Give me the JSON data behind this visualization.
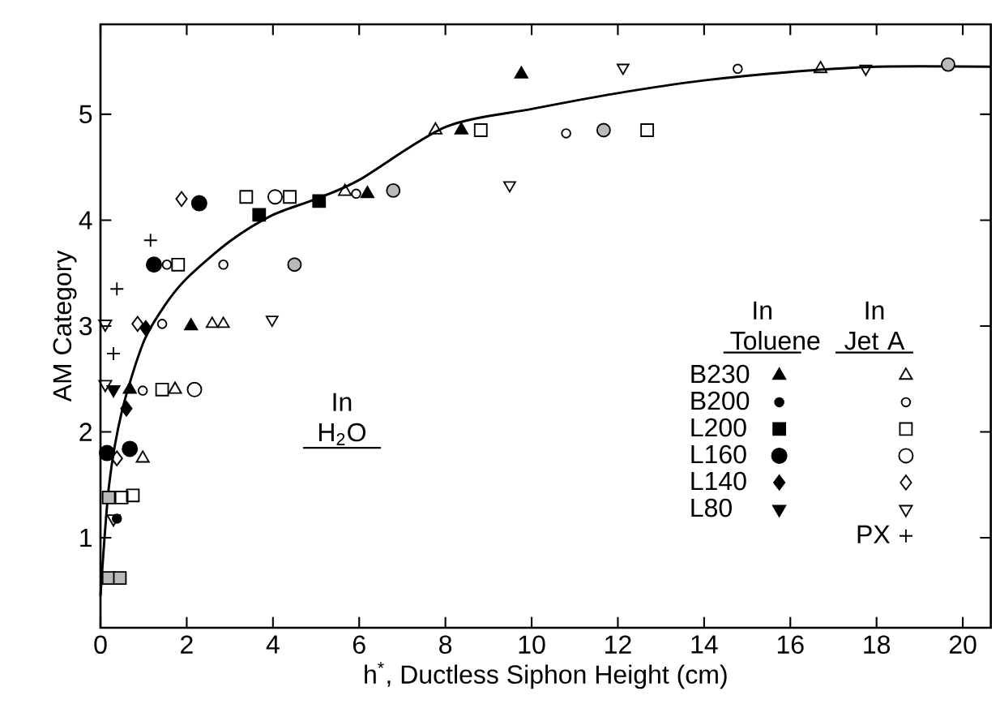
{
  "chart_data": {
    "type": "scatter",
    "xlabel": "h$^{*}$, Ductless Siphon Height (cm)",
    "ylabel": "AM Category",
    "xlim": [
      0,
      20.65
    ],
    "ylim": [
      0.15,
      5.85
    ],
    "xticks": [
      0,
      2,
      4,
      6,
      8,
      10,
      12,
      14,
      16,
      18,
      20
    ],
    "yticks": [
      1,
      2,
      3,
      4,
      5
    ],
    "grid": false,
    "legend": "bottom right",
    "annotations": [
      "In H$_{2}$O",
      "In Toluene",
      "In Jet A"
    ],
    "series": [
      {
        "color": "#000000",
        "marker": "circle slashed",
        "x": [
          4.5,
          6.79,
          11.67,
          19.66
        ],
        "values": [
          3.58,
          4.28,
          4.85,
          5.47
        ]
      },
      {
        "color": "#000000",
        "marker": "triangle down bold",
        "x": [
          3.98,
          9.49,
          12.12,
          17.75
        ],
        "values": [
          3.06,
          4.33,
          5.44,
          5.43
        ]
      },
      {
        "color": "#000000",
        "marker": "triangle bold",
        "x": [
          2.59,
          2.85
        ],
        "values": [
          3.02,
          3.02
        ]
      },
      {
        "color": "#000000",
        "marker": "square slashed",
        "x": [
          0.19,
          0.19,
          0.45
        ],
        "values": [
          1.38,
          0.62,
          0.62
        ]
      },
      {
        "name": "B230",
        "color": "#000000",
        "marker": "triangle filled",
        "x": [
          9.76,
          8.37,
          6.19,
          2.1,
          0.68
        ],
        "values": [
          5.38,
          4.85,
          4.25,
          3.0,
          2.4
        ]
      },
      {
        "name": "B200",
        "color": "#000000",
        "marker": "circle small filled",
        "x": [
          0.38
        ],
        "values": [
          1.18
        ]
      },
      {
        "name": "L200",
        "color": "#000000",
        "marker": "square filled",
        "x": [
          5.07,
          3.68
        ],
        "values": [
          4.18,
          4.05
        ]
      },
      {
        "name": "L160",
        "color": "#000000",
        "marker": "circle filled",
        "x": [
          2.29,
          1.24,
          0.15,
          0.68
        ],
        "values": [
          4.16,
          3.58,
          1.8,
          1.84
        ]
      },
      {
        "name": "L140",
        "color": "#000000",
        "marker": "diamond filled",
        "x": [
          1.05,
          0.6
        ],
        "values": [
          2.98,
          2.22
        ]
      },
      {
        "name": "L80",
        "color": "#000000",
        "marker": "triangle down filled",
        "x": [
          0.3
        ],
        "values": [
          2.4
        ]
      },
      {
        "color": "#000000",
        "marker": "triangle",
        "x": [
          16.7,
          7.77,
          5.67,
          1.73,
          0.98
        ],
        "values": [
          5.43,
          4.85,
          4.27,
          2.4,
          1.75
        ]
      },
      {
        "color": "#000000",
        "marker": "circle small",
        "x": [
          14.78,
          10.8,
          5.93,
          1.54,
          2.85,
          1.43,
          0.98
        ],
        "values": [
          5.43,
          4.82,
          4.25,
          3.58,
          3.58,
          3.02,
          2.39
        ]
      },
      {
        "color": "#000000",
        "marker": "square",
        "x": [
          8.82,
          12.68,
          4.39,
          3.38,
          1.8,
          1.43,
          0.75,
          0.49
        ],
        "values": [
          4.85,
          4.85,
          4.22,
          4.22,
          3.58,
          2.4,
          1.4,
          1.38
        ]
      },
      {
        "color": "#000000",
        "marker": "circle",
        "x": [
          4.05,
          2.18
        ],
        "values": [
          4.22,
          2.4
        ]
      },
      {
        "color": "#000000",
        "marker": "diamond",
        "x": [
          1.88,
          0.86,
          0.38
        ],
        "values": [
          4.2,
          3.02,
          1.75
        ]
      },
      {
        "color": "#000000",
        "marker": "triangle down",
        "x": [
          0.11,
          0.11,
          0.3
        ],
        "values": [
          3.02,
          2.45,
          1.18
        ]
      },
      {
        "name": "PX",
        "color": "#000000",
        "marker": "cross",
        "x": [
          0.38,
          0.3,
          1.16
        ],
        "values": [
          3.35,
          2.74,
          3.81
        ]
      },
      {
        "type": "line",
        "color": "#000000",
        "marker": "none",
        "x": [
          0,
          0.2,
          0.5,
          1,
          1.5,
          2,
          3,
          4,
          5,
          6,
          8,
          10,
          12,
          14,
          16,
          18,
          20.65
        ],
        "values": [
          0.45,
          1.5,
          2.2,
          2.85,
          3.2,
          3.45,
          3.8,
          4.05,
          4.2,
          4.38,
          4.88,
          5.05,
          5.2,
          5.32,
          5.4,
          5.45,
          5.45
        ]
      }
    ]
  }
}
